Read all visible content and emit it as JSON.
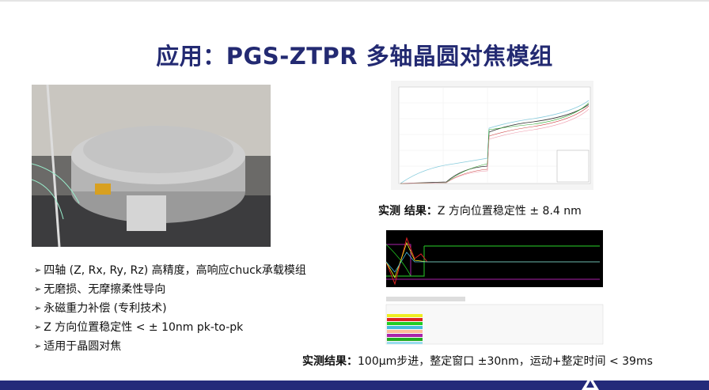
{
  "title": "应用：PGS-ZTPR 多轴晶圆对焦模组",
  "bullets": [
    "四轴 (Z, Rx, Ry, Rz) 高精度，高响应chuck承载模组",
    "无磨损、无摩擦柔性导向",
    "永磁重力补偿 (专利技术)",
    "Z 方向位置稳定性 < ± 10nm pk-to-pk",
    "适用于晶圆对焦"
  ],
  "caption1": {
    "bold": "实测 结果：",
    "text": "Z 方向位置稳定性 ± 8.4 nm"
  },
  "caption2": {
    "bold": "实测结果：",
    "text": "100μm步进，整定窗口 ±30nm，运动+整定时间 < 39ms"
  },
  "colors": {
    "title": "#232a72",
    "footer": "#242a7a"
  },
  "icons": {
    "bullet": "arrow-bullet-icon",
    "logo": "triangle-logo-icon"
  }
}
